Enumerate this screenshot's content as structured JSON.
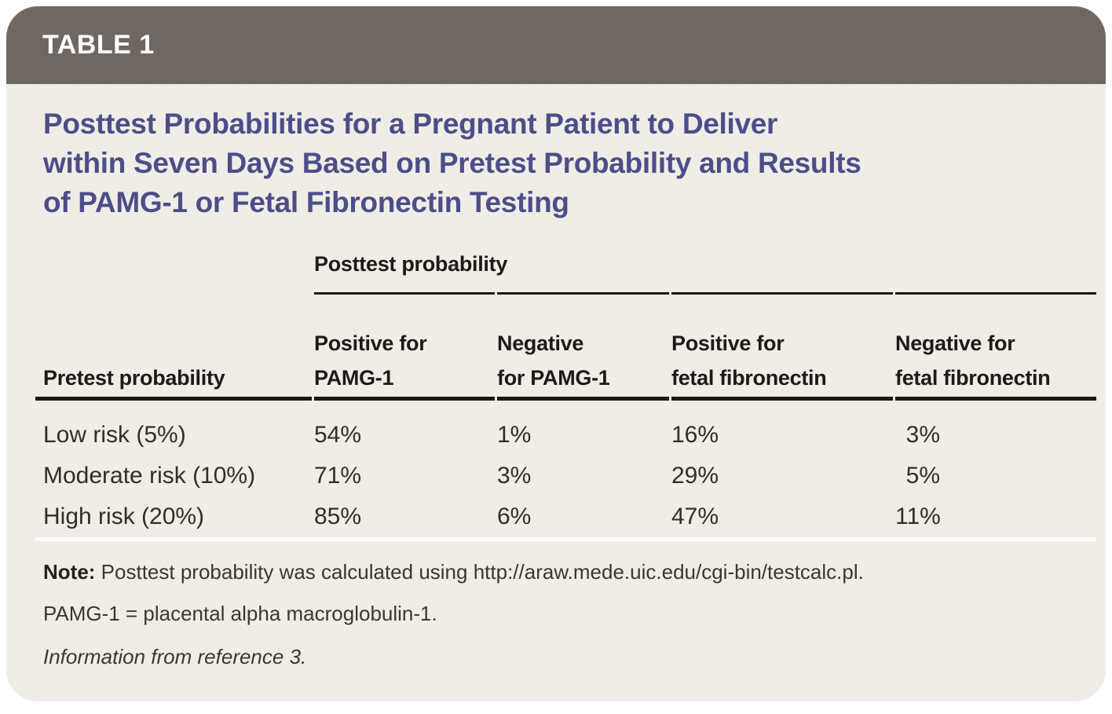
{
  "colors": {
    "page_bg": "#ffffff",
    "card_bg": "#efede6",
    "bar_bg": "#6d6660",
    "bar_text": "#ffffff",
    "title_text": "#4c4e8a",
    "rule_dark": "#1b1916",
    "rule_light": "#ffffff",
    "body_text": "#302e2a"
  },
  "header": {
    "tag": "TABLE 1"
  },
  "title": "Posttest Probabilities for a Pregnant Patient to Deliver\nwithin Seven Days Based on Pretest Probability and Results\nof PAMG-1 or Fetal Fibronectin Testing",
  "table": {
    "group_header": "Posttest probability",
    "row_header": "Pretest probability",
    "columns": [
      "Positive for\nPAMG-1",
      "Negative\nfor PAMG-1",
      "Positive for\nfetal fibronectin",
      "Negative for\nfetal fibronectin"
    ],
    "rows": [
      {
        "label": "Low risk (5%)",
        "values": [
          "54%",
          "1%",
          "16%",
          "3%"
        ]
      },
      {
        "label": "Moderate risk (10%)",
        "values": [
          "71%",
          "3%",
          "29%",
          "5%"
        ]
      },
      {
        "label": "High risk (20%)",
        "values": [
          "85%",
          "6%",
          "47%",
          "11%"
        ]
      }
    ]
  },
  "footnotes": {
    "note_label": "Note:",
    "note_text": "Posttest probability was calculated using http://araw.mede.uic.edu/cgi-bin/testcalc.pl.",
    "abbreviation": "PAMG-1 = placental alpha macroglobulin-1.",
    "source": "Information from reference 3."
  }
}
